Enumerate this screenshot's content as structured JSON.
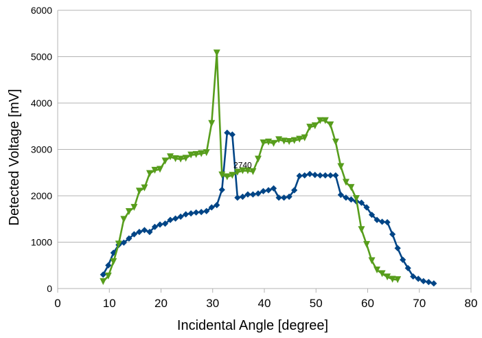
{
  "chart_data": {
    "type": "line",
    "title": "",
    "xlabel": "Incidental Angle [degree]",
    "ylabel": "Detected Voltage [mV]",
    "xlim": [
      0,
      80
    ],
    "ylim": [
      0,
      6000
    ],
    "xticks": [
      0,
      10,
      20,
      30,
      40,
      50,
      60,
      70,
      80
    ],
    "yticks": [
      0,
      1000,
      2000,
      3000,
      4000,
      5000,
      6000
    ],
    "grid": "horizontal",
    "legend": "none",
    "annotations": [
      {
        "text": "2740",
        "x": 35.8,
        "y": 2600
      }
    ],
    "series": [
      {
        "color": "#004586",
        "marker": "diamond",
        "points": [
          [
            8.8,
            300
          ],
          [
            9.8,
            500
          ],
          [
            10.8,
            770
          ],
          [
            11.8,
            940
          ],
          [
            12.8,
            990
          ],
          [
            13.8,
            1080
          ],
          [
            14.8,
            1170
          ],
          [
            15.8,
            1220
          ],
          [
            16.8,
            1260
          ],
          [
            17.8,
            1220
          ],
          [
            18.8,
            1330
          ],
          [
            19.8,
            1380
          ],
          [
            20.8,
            1400
          ],
          [
            21.8,
            1480
          ],
          [
            22.8,
            1510
          ],
          [
            23.8,
            1550
          ],
          [
            24.8,
            1600
          ],
          [
            25.8,
            1620
          ],
          [
            26.8,
            1640
          ],
          [
            27.8,
            1650
          ],
          [
            28.8,
            1670
          ],
          [
            29.8,
            1750
          ],
          [
            30.8,
            1800
          ],
          [
            31.8,
            2130
          ],
          [
            32.8,
            3360
          ],
          [
            33.8,
            3320
          ],
          [
            34.8,
            1960
          ],
          [
            35.8,
            1980
          ],
          [
            36.8,
            2030
          ],
          [
            37.8,
            2030
          ],
          [
            38.8,
            2050
          ],
          [
            39.8,
            2100
          ],
          [
            40.8,
            2120
          ],
          [
            41.8,
            2160
          ],
          [
            42.8,
            1960
          ],
          [
            43.8,
            1960
          ],
          [
            44.8,
            1980
          ],
          [
            45.8,
            2120
          ],
          [
            46.8,
            2430
          ],
          [
            47.8,
            2440
          ],
          [
            48.8,
            2470
          ],
          [
            49.8,
            2450
          ],
          [
            50.8,
            2440
          ],
          [
            51.8,
            2440
          ],
          [
            52.8,
            2440
          ],
          [
            53.8,
            2440
          ],
          [
            54.8,
            2020
          ],
          [
            55.8,
            1960
          ],
          [
            56.8,
            1920
          ],
          [
            57.8,
            1880
          ],
          [
            58.8,
            1850
          ],
          [
            59.8,
            1750
          ],
          [
            60.8,
            1590
          ],
          [
            61.8,
            1480
          ],
          [
            62.8,
            1440
          ],
          [
            63.8,
            1430
          ],
          [
            64.8,
            1170
          ],
          [
            65.8,
            870
          ],
          [
            66.8,
            620
          ],
          [
            67.8,
            440
          ],
          [
            68.8,
            260
          ],
          [
            69.8,
            210
          ],
          [
            70.8,
            160
          ],
          [
            71.8,
            140
          ],
          [
            72.8,
            110
          ]
        ]
      },
      {
        "color": "#579d1c",
        "marker": "triangle-down",
        "points": [
          [
            8.8,
            150
          ],
          [
            9.8,
            270
          ],
          [
            10.8,
            580
          ],
          [
            11.8,
            960
          ],
          [
            12.8,
            1490
          ],
          [
            13.8,
            1660
          ],
          [
            14.8,
            1750
          ],
          [
            15.8,
            2100
          ],
          [
            16.8,
            2170
          ],
          [
            17.8,
            2480
          ],
          [
            18.8,
            2550
          ],
          [
            19.8,
            2570
          ],
          [
            20.8,
            2750
          ],
          [
            21.8,
            2840
          ],
          [
            22.8,
            2800
          ],
          [
            23.8,
            2790
          ],
          [
            24.8,
            2810
          ],
          [
            25.8,
            2880
          ],
          [
            26.8,
            2890
          ],
          [
            27.8,
            2910
          ],
          [
            28.8,
            2930
          ],
          [
            29.8,
            3560
          ],
          [
            30.8,
            5080
          ],
          [
            31.8,
            2450
          ],
          [
            32.8,
            2410
          ],
          [
            33.8,
            2440
          ],
          [
            34.8,
            2510
          ],
          [
            35.8,
            2540
          ],
          [
            36.8,
            2540
          ],
          [
            37.8,
            2520
          ],
          [
            38.8,
            2790
          ],
          [
            39.8,
            3140
          ],
          [
            40.8,
            3160
          ],
          [
            41.8,
            3130
          ],
          [
            42.8,
            3210
          ],
          [
            43.8,
            3180
          ],
          [
            44.8,
            3170
          ],
          [
            45.8,
            3190
          ],
          [
            46.8,
            3220
          ],
          [
            47.8,
            3250
          ],
          [
            48.8,
            3480
          ],
          [
            49.8,
            3510
          ],
          [
            50.8,
            3620
          ],
          [
            51.8,
            3620
          ],
          [
            52.8,
            3530
          ],
          [
            53.8,
            3160
          ],
          [
            54.8,
            2630
          ],
          [
            55.8,
            2290
          ],
          [
            56.8,
            2180
          ],
          [
            57.8,
            1940
          ],
          [
            58.8,
            1270
          ],
          [
            59.8,
            950
          ],
          [
            60.8,
            600
          ],
          [
            61.8,
            400
          ],
          [
            62.8,
            320
          ],
          [
            63.8,
            250
          ],
          [
            64.8,
            200
          ],
          [
            65.8,
            190
          ]
        ]
      }
    ]
  }
}
